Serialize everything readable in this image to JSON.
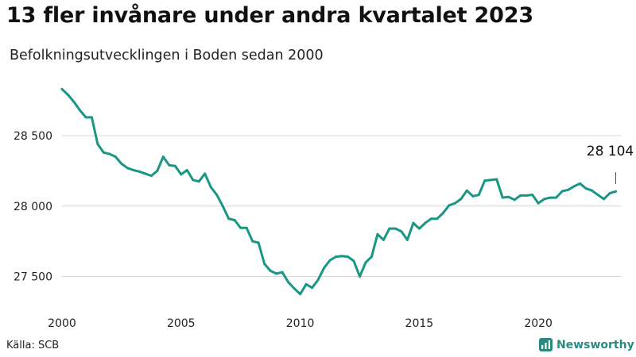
{
  "header": {
    "title": "13 fler invånare under andra kvartalet 2023",
    "subtitle": "Befolkningsutvecklingen i Boden sedan 2000"
  },
  "footer": {
    "source": "Källa: SCB",
    "brand": "Newsworthy"
  },
  "colors": {
    "line": "#1a9685",
    "grid": "#d9d9d9",
    "brand": "#2a8a80"
  },
  "chart_data": {
    "type": "line",
    "title": "13 fler invånare under andra kvartalet 2023",
    "subtitle": "Befolkningsutvecklingen i Boden sedan 2000",
    "xlabel": "",
    "ylabel": "",
    "xlim": [
      2000,
      2023.5
    ],
    "ylim": [
      27300,
      28900
    ],
    "x_ticks": [
      2000,
      2005,
      2010,
      2015,
      2020
    ],
    "x_tick_labels": [
      "2000",
      "2005",
      "2010",
      "2015",
      "2020"
    ],
    "y_ticks": [
      27500,
      28000,
      28500
    ],
    "y_tick_labels": [
      "27 500",
      "28 000",
      "28 500"
    ],
    "grid": "horizontal",
    "annotation": {
      "x": 2023.25,
      "y": 28104,
      "label": "28 104"
    },
    "series": [
      {
        "x": [
          2000.0,
          2000.25,
          2000.5,
          2000.75,
          2001.0,
          2001.25,
          2001.5,
          2001.75,
          2002.0,
          2002.25,
          2002.5,
          2002.75,
          2003.0,
          2003.25,
          2003.5,
          2003.75,
          2004.0,
          2004.25,
          2004.5,
          2004.75,
          2005.0,
          2005.25,
          2005.5,
          2005.75,
          2006.0,
          2006.25,
          2006.5,
          2006.75,
          2007.0,
          2007.25,
          2007.5,
          2007.75,
          2008.0,
          2008.25,
          2008.5,
          2008.75,
          2009.0,
          2009.25,
          2009.5,
          2009.75,
          2010.0,
          2010.25,
          2010.5,
          2010.75,
          2011.0,
          2011.25,
          2011.5,
          2011.75,
          2012.0,
          2012.25,
          2012.5,
          2012.75,
          2013.0,
          2013.25,
          2013.5,
          2013.75,
          2014.0,
          2014.25,
          2014.5,
          2014.75,
          2015.0,
          2015.25,
          2015.5,
          2015.75,
          2016.0,
          2016.25,
          2016.5,
          2016.75,
          2017.0,
          2017.25,
          2017.5,
          2017.75,
          2018.0,
          2018.25,
          2018.5,
          2018.75,
          2019.0,
          2019.25,
          2019.5,
          2019.75,
          2020.0,
          2020.25,
          2020.5,
          2020.75,
          2021.0,
          2021.25,
          2021.5,
          2021.75,
          2022.0,
          2022.25,
          2022.5,
          2022.75,
          2023.0,
          2023.25
        ],
        "y": [
          28830,
          28790,
          28740,
          28680,
          28630,
          28630,
          28440,
          28380,
          28370,
          28350,
          28300,
          28270,
          28255,
          28245,
          28230,
          28215,
          28250,
          28350,
          28290,
          28285,
          28225,
          28255,
          28185,
          28175,
          28230,
          28135,
          28080,
          28000,
          27910,
          27900,
          27845,
          27845,
          27750,
          27740,
          27590,
          27540,
          27520,
          27530,
          27460,
          27415,
          27375,
          27445,
          27420,
          27475,
          27560,
          27615,
          27640,
          27645,
          27640,
          27610,
          27500,
          27600,
          27640,
          27800,
          27760,
          27840,
          27840,
          27820,
          27760,
          27880,
          27840,
          27880,
          27910,
          27910,
          27950,
          28005,
          28020,
          28050,
          28110,
          28070,
          28080,
          28180,
          28185,
          28190,
          28060,
          28065,
          28045,
          28075,
          28075,
          28080,
          28020,
          28050,
          28060,
          28060,
          28105,
          28115,
          28140,
          28160,
          28125,
          28110,
          28080,
          28050,
          28091,
          28104
        ]
      }
    ]
  }
}
